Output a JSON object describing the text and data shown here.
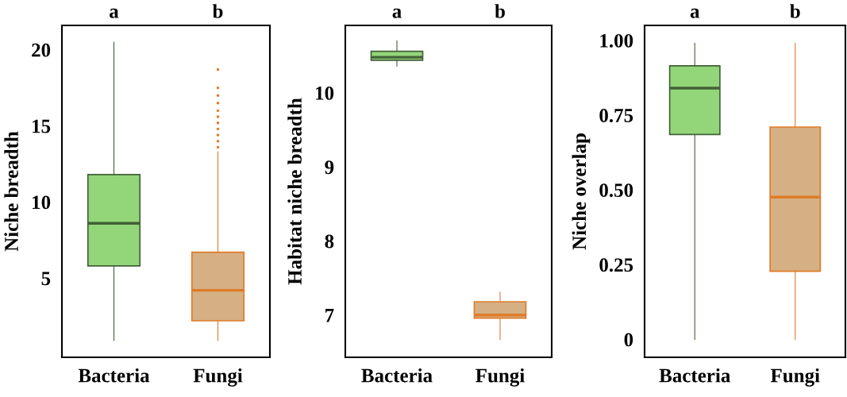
{
  "chart_data": [
    {
      "type": "box",
      "ylabel": "Niche breadth",
      "categories": [
        "Bacteria",
        "Fungi"
      ],
      "colors": [
        "#93d67a",
        "#d4b084"
      ],
      "annotations": [
        "a",
        "b"
      ],
      "ylim": [
        -0.2,
        21.6
      ],
      "yticks": [
        5,
        10,
        15,
        20
      ],
      "boxes": [
        {
          "low": 0.9,
          "q1": 5.8,
          "median": 8.6,
          "q3": 11.8,
          "high": 20.5
        },
        {
          "low": 0.9,
          "q1": 2.2,
          "median": 4.2,
          "q3": 6.7,
          "high": 13.3,
          "outliers": [
            13.6,
            14.0,
            14.4,
            14.8,
            15.2,
            15.6,
            16.0,
            16.5,
            17.0,
            17.5,
            18.7
          ]
        }
      ]
    },
    {
      "type": "box",
      "ylabel": "Habitat niche breadth",
      "categories": [
        "Bacteria",
        "Fungi"
      ],
      "colors": [
        "#93d67a",
        "#d4b084"
      ],
      "annotations": [
        "a",
        "b"
      ],
      "ylim": [
        6.43,
        10.91
      ],
      "yticks": [
        7,
        8,
        9,
        10
      ],
      "boxes": [
        {
          "low": 10.36,
          "q1": 10.44,
          "median": 10.48,
          "q3": 10.56,
          "high": 10.7
        },
        {
          "low": 6.67,
          "q1": 6.96,
          "median": 7.0,
          "q3": 7.18,
          "high": 7.31
        }
      ]
    },
    {
      "type": "box",
      "ylabel": "Niche overlap",
      "categories": [
        "Bacteria",
        "Fungi"
      ],
      "colors": [
        "#93d67a",
        "#d4b084"
      ],
      "annotations": [
        "a",
        "b"
      ],
      "ylim": [
        -0.06,
        1.05
      ],
      "yticks": [
        {
          "value": 0,
          "label": "0"
        },
        {
          "value": 0.25,
          "label": "0.25"
        },
        {
          "value": 0.5,
          "label": "0.50"
        },
        {
          "value": 0.75,
          "label": "0.75"
        },
        {
          "value": 1.0,
          "label": "1.00"
        }
      ],
      "boxes": [
        {
          "low": 0.0,
          "q1": 0.685,
          "median": 0.84,
          "q3": 0.915,
          "high": 0.99
        },
        {
          "low": 0.0,
          "q1": 0.228,
          "median": 0.476,
          "q3": 0.71,
          "high": 0.99
        }
      ]
    }
  ]
}
